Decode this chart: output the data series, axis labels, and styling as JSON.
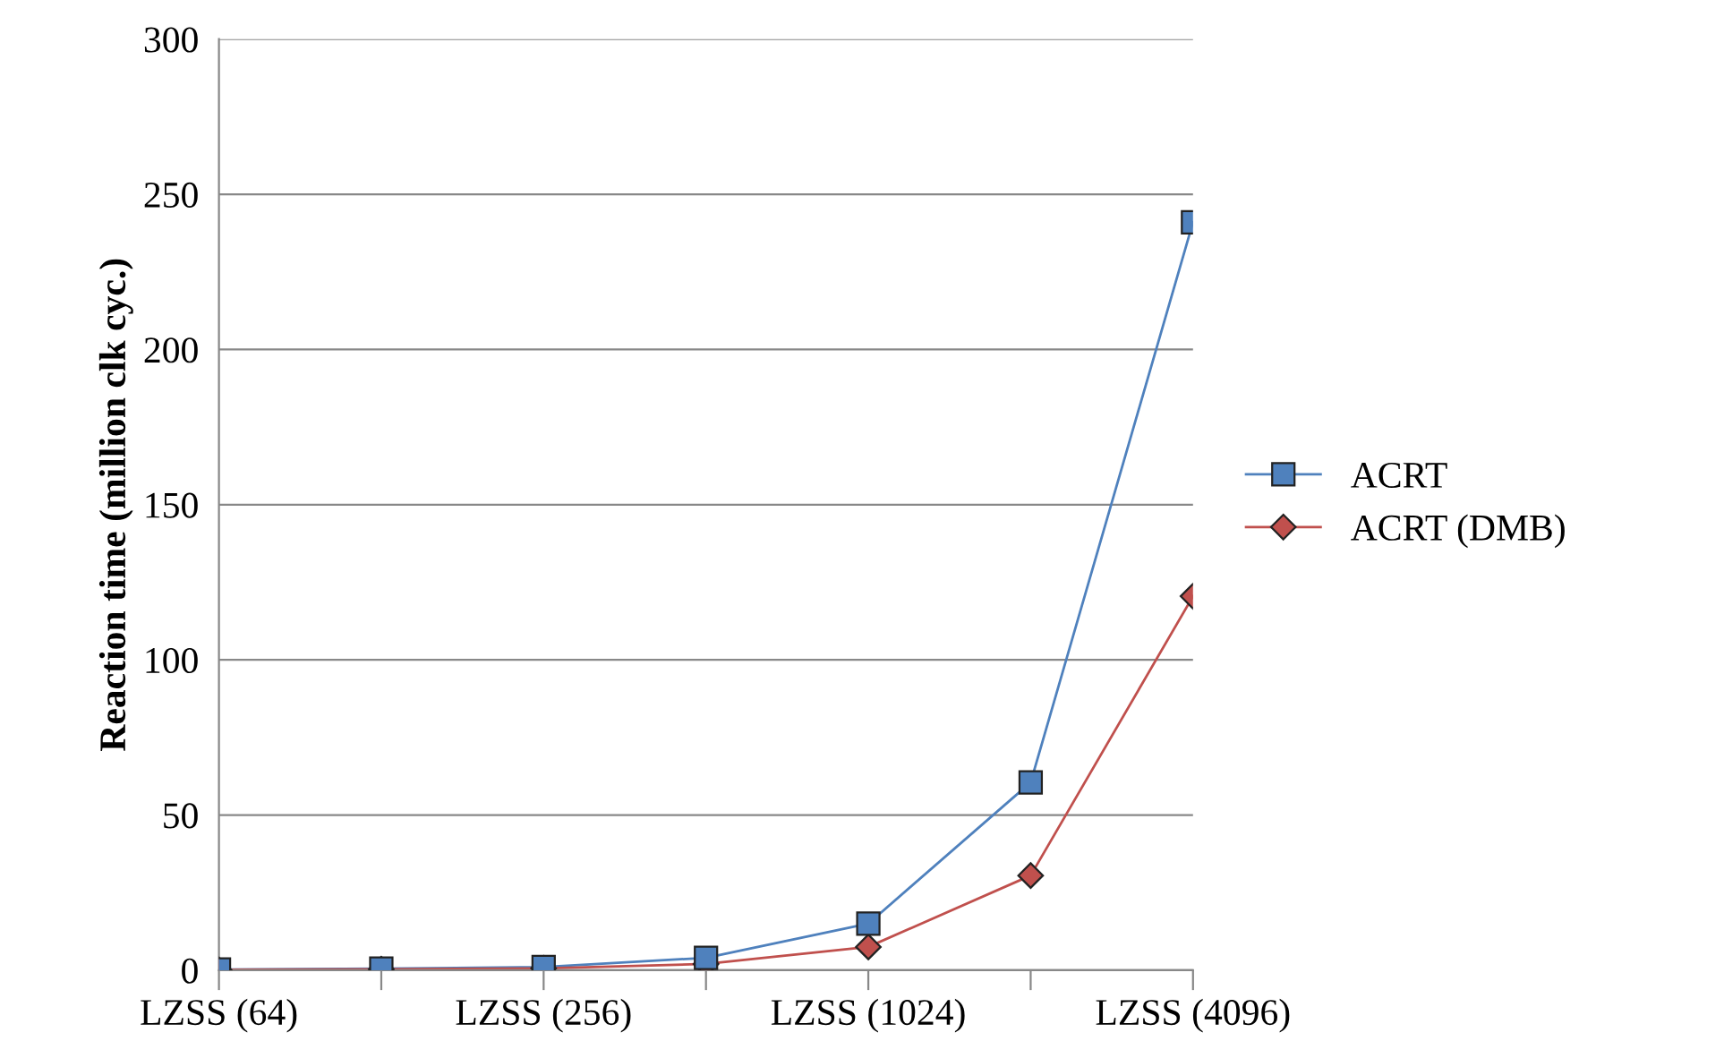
{
  "chart_data": {
    "type": "line",
    "ylabel": "Reaction time (million clk cyc.)",
    "categories": [
      "LZSS (64)",
      null,
      "LZSS (256)",
      null,
      "LZSS (1024)",
      null,
      "LZSS (4096)"
    ],
    "series": [
      {
        "name": "ACRT",
        "color": "#4f81bd",
        "marker": "square",
        "values": [
          0.2,
          0.5,
          1,
          4,
          15,
          60.5,
          241
        ]
      },
      {
        "name": "ACRT (DMB)",
        "color": "#c0504d",
        "marker": "diamond",
        "values": [
          0.1,
          0.3,
          0.6,
          2,
          7.5,
          30.5,
          120.5
        ]
      }
    ],
    "ylim": [
      0,
      300
    ],
    "yticks": [
      0,
      50,
      100,
      150,
      200,
      250,
      300
    ],
    "grid": "y",
    "legend": "right"
  }
}
